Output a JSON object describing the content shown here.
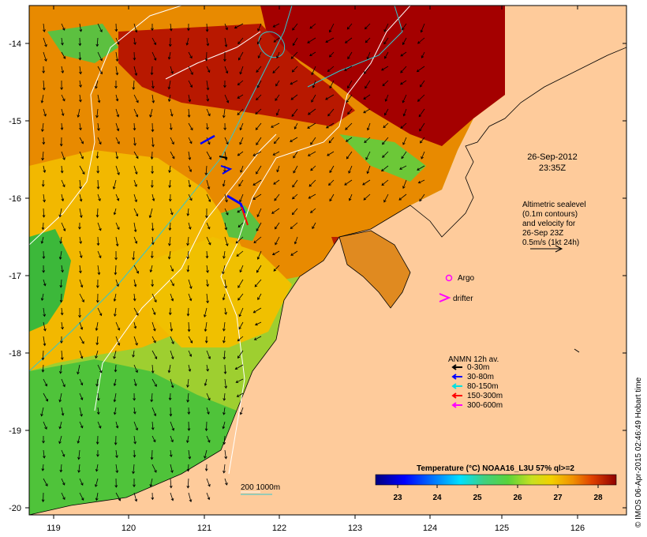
{
  "map": {
    "date_label": "26-Sep-2012",
    "time_label": "23:35Z",
    "sealevel_note": [
      "Altimetric sealevel",
      "(0.1m contours)",
      "and velocity for",
      "26-Sep 23Z",
      "0.5m/s (1kt 24h)"
    ],
    "markers": {
      "argo": "Argo",
      "drifter": "drifter"
    },
    "anmn": {
      "title": "ANMN 12h av.",
      "items": [
        {
          "label": "0-30m",
          "color": "#000000"
        },
        {
          "label": "30-80m",
          "color": "#0000ff"
        },
        {
          "label": "80-150m",
          "color": "#00e0e0"
        },
        {
          "label": "150-300m",
          "color": "#ff0000"
        },
        {
          "label": "300-600m",
          "color": "#ff00ff"
        }
      ]
    },
    "isobath_label": "200  1000m",
    "colorbar": {
      "title": "Temperature (°C) NOAA16_L3U 57% ql>=2",
      "ticks": [
        "23",
        "24",
        "25",
        "26",
        "27",
        "28"
      ]
    },
    "lon_ticks": [
      "119",
      "120",
      "121",
      "122",
      "123",
      "124",
      "125",
      "126"
    ],
    "lat_ticks": [
      "-14",
      "-15",
      "-16",
      "-17",
      "-18",
      "-19",
      "-20"
    ],
    "credit": "© IMOS 06-Apr-2015 02:46:49 Hobart time",
    "colors": {
      "land": "#fecb9b",
      "sst_hot": "#a40000",
      "sst_warm": "#e07800",
      "sst_mid": "#f2b600",
      "sst_cool": "#4cc43a"
    }
  }
}
